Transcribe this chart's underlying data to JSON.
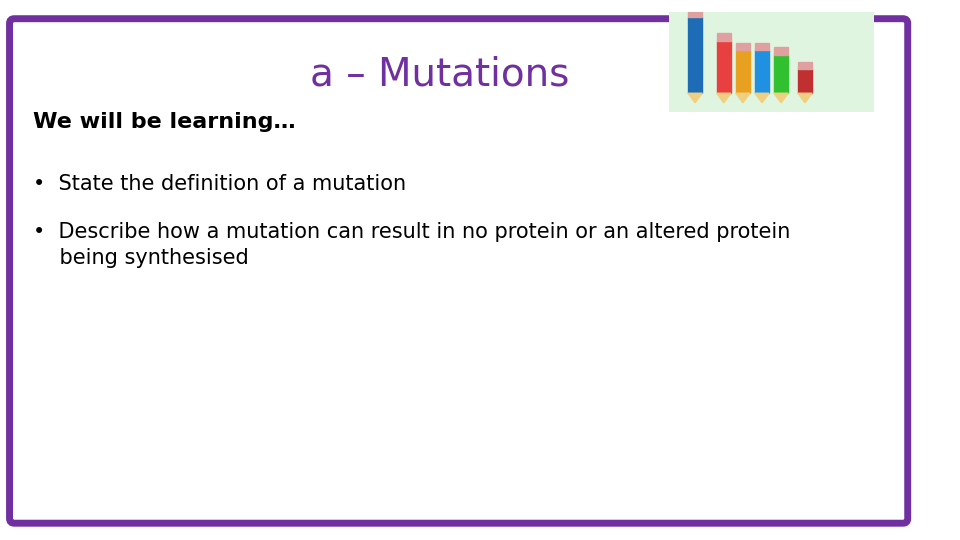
{
  "title": "a – Mutations",
  "title_color": "#7030A0",
  "title_fontsize": 28,
  "subtitle": "We will be learning…",
  "subtitle_fontsize": 16,
  "subtitle_color": "#000000",
  "bullet1": "•  State the definition of a mutation",
  "bullet2_line1": "•  Describe how a mutation can result in no protein or an altered protein",
  "bullet2_line2": "    being synthesised",
  "bullet_fontsize": 15,
  "bullet_color": "#000000",
  "background_color": "#ffffff",
  "border_color": "#7030A0",
  "border_linewidth": 5,
  "img_bg_color": "#e0f5e0",
  "fig_width": 9.6,
  "fig_height": 5.4
}
